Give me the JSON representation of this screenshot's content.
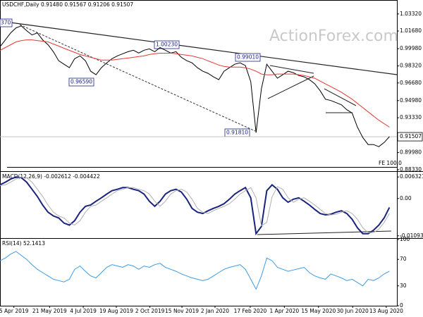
{
  "chart_data": [
    {
      "type": "line",
      "title": "USDCHF,Daily  0.91480 0.91567 0.91206 0.91507",
      "watermark": "ActionForex.com",
      "annotations": [
        "370",
        "0.96590",
        "1.00230",
        "0.99010",
        "0.91810",
        "FE 100.0"
      ],
      "xlim": [
        0,
        74
      ],
      "ylim": [
        0.8819,
        1.0453
      ],
      "yticks": [
        {
          "value": 1.0332,
          "label": "1.03320"
        },
        {
          "value": 1.0168,
          "label": "1.01680"
        },
        {
          "value": 0.9998,
          "label": "0.99980"
        },
        {
          "value": 0.9832,
          "label": "0.98320"
        },
        {
          "value": 0.9668,
          "label": "0.96680"
        },
        {
          "value": 0.9498,
          "label": "0.94980"
        },
        {
          "value": 0.9333,
          "label": "0.93330"
        },
        {
          "value": 0.8998,
          "label": "0.89980"
        },
        {
          "value": 0.8833,
          "label": "0.88330"
        }
      ],
      "price_marker": 0.91507,
      "series": [
        {
          "color": "#000000",
          "values": [
            1.0016,
            1.0083,
            1.015,
            1.0198,
            1.0218,
            1.0171,
            1.013,
            1.015,
            1.0083,
            1.0036,
            0.9969,
            0.9882,
            0.9848,
            0.9815,
            0.9902,
            0.9929,
            0.9882,
            0.9781,
            0.9747,
            0.9815,
            0.9862,
            0.9902,
            0.9929,
            0.9949,
            0.9969,
            0.9983,
            0.9956,
            0.9983,
            0.9996,
            0.9969,
            1.0009,
            0.9983,
            0.9956,
            0.9969,
            0.9915,
            0.9882,
            0.9862,
            0.9815,
            0.9781,
            0.9761,
            0.9727,
            0.97,
            0.9781,
            0.9815,
            0.9848,
            0.9862,
            0.9835,
            0.968,
            0.919,
            0.9613,
            0.9848,
            0.9781,
            0.9714,
            0.9747,
            0.9781,
            0.9767,
            0.974,
            0.9727,
            0.97,
            0.966,
            0.9593,
            0.9512,
            0.9499,
            0.9479,
            0.9458,
            0.9411,
            0.9378,
            0.9243,
            0.9143,
            0.9075,
            0.9075,
            0.9055,
            0.9095,
            0.9151
          ]
        },
        {
          "color": "#e53935",
          "values": [
            0.9982,
            1.0009,
            1.0036,
            1.0063,
            1.0076,
            1.0083,
            1.0083,
            1.0076,
            1.007,
            1.0063,
            1.0043,
            1.0023,
            1.0002,
            0.9982,
            0.9962,
            0.9942,
            0.9928,
            0.9915,
            0.9902,
            0.9888,
            0.9888,
            0.9888,
            0.9895,
            0.9902,
            0.9908,
            0.9915,
            0.9922,
            0.9928,
            0.9942,
            0.9949,
            0.9955,
            0.9955,
            0.9955,
            0.9949,
            0.9942,
            0.9935,
            0.9928,
            0.9915,
            0.9902,
            0.9881,
            0.9861,
            0.9841,
            0.9828,
            0.9821,
            0.9821,
            0.9821,
            0.9814,
            0.9801,
            0.9781,
            0.9754,
            0.9747,
            0.9747,
            0.9754,
            0.9754,
            0.9754,
            0.9754,
            0.9747,
            0.974,
            0.9727,
            0.9713,
            0.9686,
            0.9659,
            0.9633,
            0.9606,
            0.9579,
            0.9545,
            0.9512,
            0.9471,
            0.9431,
            0.939,
            0.935,
            0.931,
            0.9276,
            0.9243
          ]
        }
      ]
    },
    {
      "type": "line",
      "title": "MACD(12,26,9) -0.002612 -0.004422",
      "xlim": [
        0,
        74
      ],
      "ylim": [
        -0.0114,
        0.0076
      ],
      "yticks": [
        0.006321,
        {
          "value": 0,
          "label": "0.00"
        },
        -0.010939
      ],
      "series": [
        {
          "color": "#1a237e",
          "values": [
            0.004,
            0.0048,
            0.0057,
            0.0063,
            0.0061,
            0.0048,
            0.0027,
            0.0006,
            -0.0019,
            -0.004,
            -0.0051,
            -0.0057,
            -0.0072,
            -0.0078,
            -0.0065,
            -0.004,
            -0.0023,
            -0.0019,
            -0.0008,
            0.0002,
            0.0013,
            0.0023,
            0.0027,
            0.0032,
            0.0032,
            0.0027,
            0.0023,
            0.0013,
            -0.0008,
            -0.0023,
            -0.0008,
            0.0013,
            0.0023,
            0.0027,
            0.0019,
            -0.0002,
            -0.0029,
            -0.004,
            -0.0044,
            -0.0036,
            -0.0029,
            -0.0023,
            -0.0015,
            -0.0002,
            0.0013,
            0.0023,
            0.0032,
            0.0002,
            -0.0103,
            -0.0082,
            0.0023,
            0.004,
            0.0027,
            0.0002,
            -0.0011,
            -0.0002,
            0.0002,
            -0.0008,
            -0.0019,
            -0.0032,
            -0.0044,
            -0.0048,
            -0.0046,
            -0.004,
            -0.0036,
            -0.0044,
            -0.0061,
            -0.0086,
            -0.0103,
            -0.0103,
            -0.0093,
            -0.0078,
            -0.0057,
            -0.0026
          ]
        },
        {
          "color": "#b0b0b0",
          "values": [
            0.0038,
            0.004,
            0.0048,
            0.0057,
            0.0063,
            0.0061,
            0.0048,
            0.0027,
            0.0006,
            -0.0019,
            -0.004,
            -0.0051,
            -0.0057,
            -0.0072,
            -0.0078,
            -0.0065,
            -0.004,
            -0.0023,
            -0.0019,
            -0.0008,
            0.0002,
            0.0013,
            0.0023,
            0.0027,
            0.0032,
            0.0032,
            0.0027,
            0.0023,
            0.0013,
            -0.0008,
            -0.0023,
            -0.0008,
            0.0013,
            0.0023,
            0.0027,
            0.0019,
            -0.0002,
            -0.0029,
            -0.004,
            -0.0044,
            -0.0036,
            -0.0029,
            -0.0023,
            -0.0015,
            -0.0002,
            0.0013,
            0.0023,
            0.0032,
            0.0002,
            -0.008,
            -0.007,
            0.0005,
            0.0035,
            0.0027,
            0.0002,
            -0.0011,
            -0.0002,
            0.0002,
            -0.0008,
            -0.0019,
            -0.0032,
            -0.0044,
            -0.0048,
            -0.0046,
            -0.004,
            -0.0036,
            -0.0044,
            -0.0061,
            -0.0086,
            -0.01,
            -0.01,
            -0.009,
            -0.007,
            -0.0044
          ]
        }
      ]
    },
    {
      "type": "line",
      "title": "RSI(14) 52.1413",
      "xlim": [
        0,
        74
      ],
      "ylim": [
        0,
        100
      ],
      "yticks": [
        100,
        70,
        30,
        0
      ],
      "xticks": [
        {
          "value": 2.6,
          "label": "5 Apr 2019"
        },
        {
          "value": 9.3,
          "label": "21 May 2019"
        },
        {
          "value": 15.6,
          "label": "4 Jul 2019"
        },
        {
          "value": 21.8,
          "label": "19 Aug 2019"
        },
        {
          "value": 28.1,
          "label": "2 Oct 2019"
        },
        {
          "value": 34.1,
          "label": "15 Nov 2019"
        },
        {
          "value": 40.3,
          "label": "2 Jan 2020"
        },
        {
          "value": 46.9,
          "label": "17 Feb 2020"
        },
        {
          "value": 53.3,
          "label": "1 Apr 2020"
        },
        {
          "value": 59.7,
          "label": "15 May 2020"
        },
        {
          "value": 66.1,
          "label": "30 Jun 2020"
        },
        {
          "value": 72.4,
          "label": "13 Aug 2020"
        }
      ],
      "series": [
        {
          "color": "#3d9be0",
          "values": [
            68,
            72,
            78,
            82,
            76,
            70,
            62,
            55,
            50,
            45,
            40,
            38,
            36,
            40,
            55,
            60,
            52,
            45,
            42,
            50,
            58,
            62,
            60,
            58,
            62,
            60,
            55,
            60,
            58,
            62,
            64,
            58,
            55,
            52,
            48,
            45,
            42,
            40,
            38,
            40,
            45,
            50,
            55,
            58,
            60,
            62,
            55,
            40,
            25,
            45,
            72,
            68,
            58,
            55,
            52,
            54,
            56,
            58,
            50,
            45,
            42,
            40,
            48,
            45,
            42,
            38,
            40,
            35,
            30,
            40,
            38,
            42,
            48,
            52.1413
          ]
        }
      ]
    }
  ]
}
